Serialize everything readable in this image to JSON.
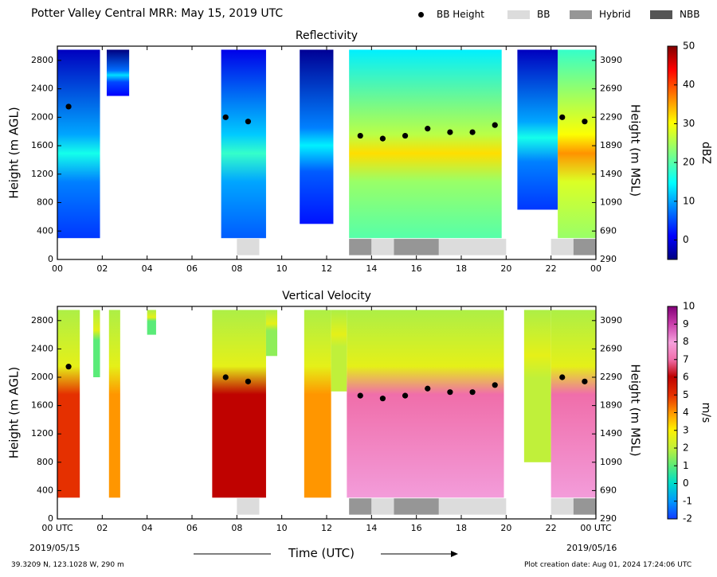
{
  "title": "Potter Valley Central MRR:  May 15, 2019 UTC",
  "legend": [
    {
      "label": "BB Height",
      "marker": "dot",
      "color": "#000000"
    },
    {
      "label": "BB",
      "marker": "swatch",
      "color": "#dcdcdc"
    },
    {
      "label": "Hybrid",
      "marker": "swatch",
      "color": "#969696"
    },
    {
      "label": "NBB",
      "marker": "swatch",
      "color": "#555555"
    }
  ],
  "xlabel": "Time (UTC)",
  "start_date": "2019/05/15",
  "end_date": "2019/05/16",
  "x_tick_labels": [
    "00",
    "02",
    "04",
    "06",
    "08",
    "10",
    "12",
    "14",
    "16",
    "18",
    "20",
    "22",
    "00"
  ],
  "x_tick_labels_bottom": [
    "00 UTC",
    "02",
    "04",
    "06",
    "08",
    "10",
    "12",
    "14",
    "16",
    "18",
    "20",
    "22",
    "00 UTC"
  ],
  "footer_left": "39.3209 N, 123.1028 W, 290 m",
  "footer_right": "Plot creation date: Aug 01, 2024 17:24:06 UTC",
  "colors": {
    "bb": "#dcdcdc",
    "hybrid": "#969696",
    "nbb": "#555555",
    "bb_dot": "#000000"
  },
  "chart_data": [
    {
      "type": "heatmap",
      "title": "Reflectivity",
      "xlabel": "",
      "ylabel": "Height (m AGL)",
      "ylabel_right": "Height (m MSL)",
      "xlim": [
        0,
        24
      ],
      "ylim": [
        0,
        3000
      ],
      "y_ticks": [
        0,
        400,
        800,
        1200,
        1600,
        2000,
        2400,
        2800
      ],
      "y_ticks_right": [
        290,
        690,
        1090,
        1490,
        1890,
        2290,
        2690,
        3090
      ],
      "colorbar": {
        "label": "dBZ",
        "min": -5,
        "max": 50,
        "ticks": [
          0,
          10,
          20,
          30,
          40,
          50
        ],
        "colormap": "jet"
      },
      "echo_segments": [
        {
          "start": 0.0,
          "end": 1.9,
          "top": 2950,
          "base": 300,
          "value": 8
        },
        {
          "start": 2.2,
          "end": 3.2,
          "top": 2950,
          "base": 2300,
          "value": 5
        },
        {
          "start": 7.3,
          "end": 9.3,
          "top": 2950,
          "base": 300,
          "value": 10
        },
        {
          "start": 10.8,
          "end": 12.3,
          "top": 2950,
          "base": 500,
          "value": 6
        },
        {
          "start": 13.0,
          "end": 19.8,
          "top": 2950,
          "base": 300,
          "value": 24
        },
        {
          "start": 20.5,
          "end": 22.3,
          "top": 2950,
          "base": 700,
          "value": 8
        },
        {
          "start": 22.3,
          "end": 24.0,
          "top": 2950,
          "base": 300,
          "value": 28
        }
      ],
      "bright_band_height": [
        {
          "time": 0.5,
          "height": 2150
        },
        {
          "time": 7.5,
          "height": 2000
        },
        {
          "time": 8.5,
          "height": 1940
        },
        {
          "time": 13.5,
          "height": 1740
        },
        {
          "time": 14.5,
          "height": 1700
        },
        {
          "time": 15.5,
          "height": 1740
        },
        {
          "time": 16.5,
          "height": 1840
        },
        {
          "time": 17.5,
          "height": 1790
        },
        {
          "time": 18.5,
          "height": 1790
        },
        {
          "time": 19.5,
          "height": 1890
        },
        {
          "time": 22.5,
          "height": 2000
        },
        {
          "time": 23.5,
          "height": 1940
        }
      ],
      "classification": [
        {
          "start": 8.0,
          "end": 9.0,
          "type": "BB"
        },
        {
          "start": 13.0,
          "end": 14.0,
          "type": "Hybrid"
        },
        {
          "start": 14.0,
          "end": 15.0,
          "type": "BB"
        },
        {
          "start": 15.0,
          "end": 17.0,
          "type": "Hybrid"
        },
        {
          "start": 17.0,
          "end": 20.0,
          "type": "BB"
        },
        {
          "start": 22.0,
          "end": 23.0,
          "type": "BB"
        },
        {
          "start": 23.0,
          "end": 24.0,
          "type": "Hybrid"
        }
      ]
    },
    {
      "type": "heatmap",
      "title": "Vertical Velocity",
      "xlabel": "Time (UTC)",
      "ylabel": "Height (m AGL)",
      "ylabel_right": "Height (m MSL)",
      "xlim": [
        0,
        24
      ],
      "ylim": [
        0,
        3000
      ],
      "y_ticks": [
        0,
        400,
        800,
        1200,
        1600,
        2000,
        2400,
        2800
      ],
      "y_ticks_right": [
        290,
        690,
        1090,
        1490,
        1890,
        2290,
        2690,
        3090
      ],
      "colorbar": {
        "label": "m/s",
        "min": -2,
        "max": 10,
        "ticks": [
          -2,
          -1,
          0,
          1,
          2,
          3,
          4,
          5,
          6,
          7,
          8,
          9,
          10
        ]
      },
      "echo_segments": [
        {
          "start": 0.0,
          "end": 1.0,
          "top": 2950,
          "base": 300,
          "value": 5
        },
        {
          "start": 1.6,
          "end": 1.9,
          "top": 2950,
          "base": 2000,
          "value": 1
        },
        {
          "start": 2.3,
          "end": 2.8,
          "top": 2950,
          "base": 300,
          "value": 4
        },
        {
          "start": 4.0,
          "end": 4.4,
          "top": 2950,
          "base": 2600,
          "value": 1
        },
        {
          "start": 6.9,
          "end": 9.3,
          "top": 2950,
          "base": 300,
          "value": 6
        },
        {
          "start": 9.3,
          "end": 9.8,
          "top": 2950,
          "base": 2300,
          "value": 1.5
        },
        {
          "start": 11.0,
          "end": 12.2,
          "top": 2950,
          "base": 300,
          "value": 4
        },
        {
          "start": 12.2,
          "end": 12.9,
          "top": 2950,
          "base": 1800,
          "value": 2
        },
        {
          "start": 12.9,
          "end": 19.9,
          "top": 2950,
          "base": 300,
          "value": 7
        },
        {
          "start": 20.8,
          "end": 22.0,
          "top": 2950,
          "base": 800,
          "value": 2
        },
        {
          "start": 22.0,
          "end": 24.0,
          "top": 2950,
          "base": 300,
          "value": 7
        }
      ],
      "bright_band_height": [
        {
          "time": 0.5,
          "height": 2150
        },
        {
          "time": 7.5,
          "height": 2000
        },
        {
          "time": 8.5,
          "height": 1940
        },
        {
          "time": 13.5,
          "height": 1740
        },
        {
          "time": 14.5,
          "height": 1700
        },
        {
          "time": 15.5,
          "height": 1740
        },
        {
          "time": 16.5,
          "height": 1840
        },
        {
          "time": 17.5,
          "height": 1790
        },
        {
          "time": 18.5,
          "height": 1790
        },
        {
          "time": 19.5,
          "height": 1890
        },
        {
          "time": 22.5,
          "height": 2000
        },
        {
          "time": 23.5,
          "height": 1940
        }
      ],
      "classification": [
        {
          "start": 8.0,
          "end": 9.0,
          "type": "BB"
        },
        {
          "start": 13.0,
          "end": 14.0,
          "type": "Hybrid"
        },
        {
          "start": 14.0,
          "end": 15.0,
          "type": "BB"
        },
        {
          "start": 15.0,
          "end": 17.0,
          "type": "Hybrid"
        },
        {
          "start": 17.0,
          "end": 20.0,
          "type": "BB"
        },
        {
          "start": 22.0,
          "end": 23.0,
          "type": "BB"
        },
        {
          "start": 23.0,
          "end": 24.0,
          "type": "Hybrid"
        }
      ]
    }
  ]
}
